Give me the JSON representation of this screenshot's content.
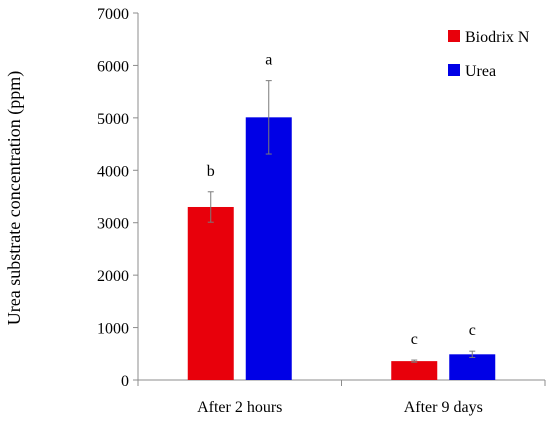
{
  "chart_data": {
    "type": "bar",
    "title": "",
    "xlabel": "",
    "ylabel": "Urea substrate concentration (ppm)",
    "ylim": [
      0,
      7000
    ],
    "yticks": [
      0,
      1000,
      2000,
      3000,
      4000,
      5000,
      6000,
      7000
    ],
    "grid": false,
    "legend_position": "top-right",
    "categories": [
      "After 2 hours",
      "After 9 days"
    ],
    "series": [
      {
        "name": "Biodrix N",
        "color": "#e8000b",
        "values": [
          3300,
          360
        ],
        "errors": [
          290,
          20
        ],
        "significance": [
          "b",
          "c"
        ]
      },
      {
        "name": "Urea",
        "color": "#0000e6",
        "values": [
          5010,
          490
        ],
        "errors": [
          700,
          60
        ],
        "significance": [
          "a",
          "c"
        ]
      }
    ]
  }
}
